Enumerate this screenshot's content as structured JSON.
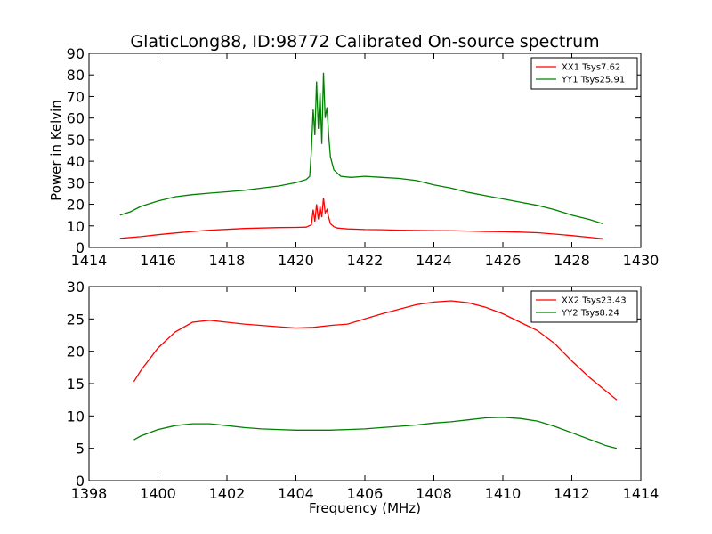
{
  "chart_data": [
    {
      "type": "line",
      "title": "GlaticLong88, ID:98772 Calibrated On-source spectrum",
      "xlabel": "",
      "ylabel": "Power in Kelvin",
      "xlim": [
        1414,
        1430
      ],
      "ylim": [
        0,
        90
      ],
      "xticks": [
        1414,
        1416,
        1418,
        1420,
        1422,
        1424,
        1426,
        1428,
        1430
      ],
      "yticks": [
        0,
        10,
        20,
        30,
        40,
        50,
        60,
        70,
        80,
        90
      ],
      "legend_position": "top-right",
      "grid": false,
      "series": [
        {
          "name": "XX1 Tsys7.62",
          "color": "#ff0000",
          "x": [
            1414.9,
            1415.5,
            1416.0,
            1416.5,
            1417.0,
            1417.5,
            1418.0,
            1418.5,
            1419.0,
            1419.5,
            1420.0,
            1420.3,
            1420.45,
            1420.5,
            1420.55,
            1420.6,
            1420.65,
            1420.7,
            1420.75,
            1420.8,
            1420.85,
            1420.9,
            1420.95,
            1421.0,
            1421.1,
            1421.2,
            1421.5,
            1422.0,
            1422.5,
            1423.0,
            1423.5,
            1424.0,
            1424.5,
            1425.0,
            1425.5,
            1426.0,
            1426.5,
            1427.0,
            1427.5,
            1428.0,
            1428.5,
            1428.9
          ],
          "y": [
            4.2,
            5.0,
            5.9,
            6.7,
            7.4,
            8.0,
            8.4,
            8.8,
            9.0,
            9.2,
            9.3,
            9.4,
            10.5,
            17.5,
            12.0,
            20.0,
            13.0,
            19.0,
            14.0,
            23.0,
            16.0,
            17.5,
            14.0,
            11.0,
            9.6,
            9.0,
            8.6,
            8.3,
            8.2,
            8.0,
            7.9,
            7.8,
            7.7,
            7.6,
            7.4,
            7.3,
            7.1,
            6.8,
            6.2,
            5.5,
            4.7,
            4.0
          ]
        },
        {
          "name": "YY1 Tsys25.91",
          "color": "#008000",
          "x": [
            1414.9,
            1415.2,
            1415.5,
            1416.0,
            1416.5,
            1417.0,
            1417.5,
            1418.0,
            1418.5,
            1419.0,
            1419.5,
            1420.0,
            1420.3,
            1420.4,
            1420.45,
            1420.5,
            1420.55,
            1420.6,
            1420.65,
            1420.7,
            1420.75,
            1420.8,
            1420.85,
            1420.9,
            1420.95,
            1421.0,
            1421.1,
            1421.3,
            1421.6,
            1422.0,
            1422.5,
            1423.0,
            1423.5,
            1424.0,
            1424.5,
            1425.0,
            1425.5,
            1426.0,
            1426.5,
            1427.0,
            1427.5,
            1428.0,
            1428.5,
            1428.9
          ],
          "y": [
            15.0,
            16.5,
            19.0,
            21.5,
            23.5,
            24.5,
            25.2,
            25.8,
            26.5,
            27.5,
            28.5,
            30.0,
            31.5,
            33.0,
            45.0,
            64.0,
            52.0,
            77.0,
            55.0,
            72.0,
            48.0,
            81.0,
            60.0,
            65.0,
            52.0,
            42.0,
            36.0,
            33.0,
            32.5,
            33.0,
            32.5,
            32.0,
            31.0,
            29.0,
            27.5,
            25.5,
            24.0,
            22.5,
            21.0,
            19.5,
            17.5,
            15.0,
            13.0,
            11.0
          ]
        }
      ]
    },
    {
      "type": "line",
      "title": "",
      "xlabel": "Frequency (MHz)",
      "ylabel": "",
      "xlim": [
        1398,
        1414
      ],
      "ylim": [
        0,
        30
      ],
      "xticks": [
        1398,
        1400,
        1402,
        1404,
        1406,
        1408,
        1410,
        1412,
        1414
      ],
      "yticks": [
        0,
        5,
        10,
        15,
        20,
        25,
        30
      ],
      "legend_position": "top-right",
      "grid": false,
      "series": [
        {
          "name": "XX2 Tsys23.43",
          "color": "#ff0000",
          "x": [
            1399.3,
            1399.5,
            1400.0,
            1400.5,
            1401.0,
            1401.5,
            1402.0,
            1402.5,
            1403.0,
            1403.5,
            1404.0,
            1404.5,
            1405.0,
            1405.5,
            1406.0,
            1406.5,
            1407.0,
            1407.5,
            1408.0,
            1408.5,
            1409.0,
            1409.5,
            1410.0,
            1410.5,
            1411.0,
            1411.5,
            1412.0,
            1412.5,
            1413.0,
            1413.3
          ],
          "y": [
            15.3,
            17.0,
            20.5,
            23.0,
            24.5,
            24.8,
            24.5,
            24.2,
            24.0,
            23.8,
            23.6,
            23.7,
            24.0,
            24.2,
            25.0,
            25.8,
            26.5,
            27.2,
            27.6,
            27.8,
            27.5,
            26.8,
            25.8,
            24.5,
            23.2,
            21.2,
            18.5,
            16.0,
            13.8,
            12.5
          ]
        },
        {
          "name": "YY2 Tsys8.24",
          "color": "#008000",
          "x": [
            1399.3,
            1399.5,
            1400.0,
            1400.5,
            1401.0,
            1401.5,
            1402.0,
            1402.5,
            1403.0,
            1403.5,
            1404.0,
            1404.5,
            1405.0,
            1405.5,
            1406.0,
            1406.5,
            1407.0,
            1407.5,
            1408.0,
            1408.5,
            1409.0,
            1409.5,
            1410.0,
            1410.5,
            1411.0,
            1411.5,
            1412.0,
            1412.5,
            1413.0,
            1413.3
          ],
          "y": [
            6.3,
            6.9,
            7.9,
            8.5,
            8.8,
            8.8,
            8.5,
            8.2,
            8.0,
            7.9,
            7.8,
            7.8,
            7.8,
            7.9,
            8.0,
            8.2,
            8.4,
            8.6,
            8.9,
            9.1,
            9.4,
            9.7,
            9.8,
            9.6,
            9.2,
            8.4,
            7.4,
            6.4,
            5.4,
            5.0
          ]
        }
      ]
    }
  ]
}
